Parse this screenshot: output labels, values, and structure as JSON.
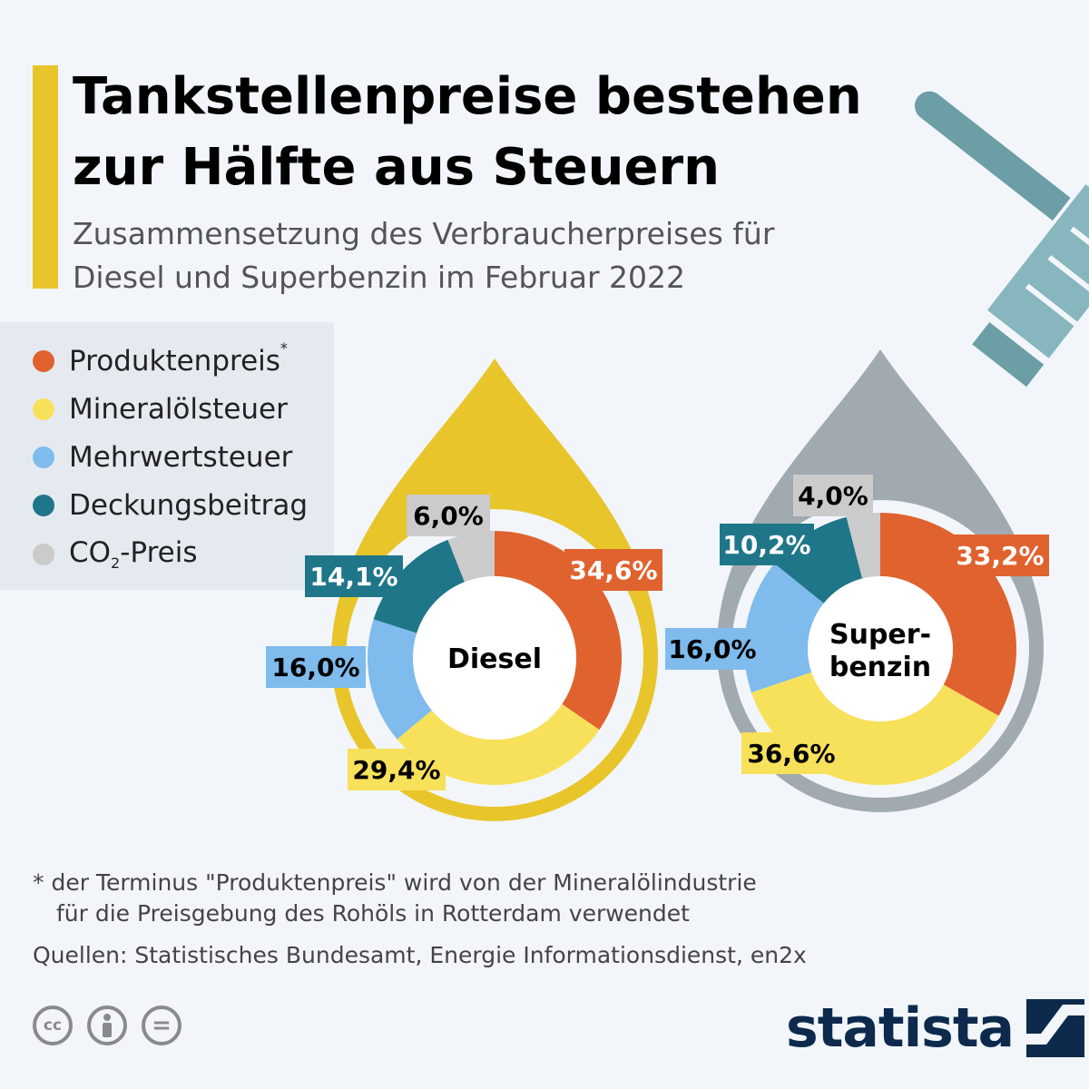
{
  "header": {
    "title_line1": "Tankstellenpreise bestehen",
    "title_line2": "zur Hälfte aus Steuern",
    "subtitle_line1": "Zusammensetzung des Verbraucherpreises für",
    "subtitle_line2": "Diesel und Superbenzin im Februar 2022"
  },
  "legend": {
    "produktenpreis": "Produktenpreis",
    "produktenpreis_mark": "*",
    "mineraloelsteuer": "Mineralölsteuer",
    "mehrwertsteuer": "Mehrwertsteuer",
    "deckungsbeitrag": "Deckungsbeitrag",
    "co2_prefix": "CO",
    "co2_sub": "2",
    "co2_suffix": "-Preis"
  },
  "colors": {
    "produktenpreis": "#e0622e",
    "mineraloelsteuer": "#f8e15a",
    "mehrwertsteuer": "#7fbbed",
    "deckungsbeitrag": "#1f7689",
    "co2": "#cbcbcb",
    "diesel_drop": "#e8c52b",
    "super_drop": "#a1a9b1"
  },
  "chart_data": [
    {
      "type": "pie",
      "name": "Diesel",
      "center_label": "Diesel",
      "slices": [
        {
          "category": "Produktenpreis",
          "value": 34.6,
          "label": "34,6%"
        },
        {
          "category": "Mineralölsteuer",
          "value": 29.4,
          "label": "29,4%"
        },
        {
          "category": "Mehrwertsteuer",
          "value": 16.0,
          "label": "16,0%"
        },
        {
          "category": "Deckungsbeitrag",
          "value": 14.1,
          "label": "14,1%"
        },
        {
          "category": "CO2-Preis",
          "value": 6.0,
          "label": "6,0%"
        }
      ]
    },
    {
      "type": "pie",
      "name": "Superbenzin",
      "center_label_line1": "Super-",
      "center_label_line2": "benzin",
      "slices": [
        {
          "category": "Produktenpreis",
          "value": 33.2,
          "label": "33,2%"
        },
        {
          "category": "Mineralölsteuer",
          "value": 36.6,
          "label": "36,6%"
        },
        {
          "category": "Mehrwertsteuer",
          "value": 16.0,
          "label": "16,0%"
        },
        {
          "category": "Deckungsbeitrag",
          "value": 10.2,
          "label": "10,2%"
        },
        {
          "category": "CO2-Preis",
          "value": 4.0,
          "label": "4,0%"
        }
      ]
    }
  ],
  "footer": {
    "footnote_line1": "* der Terminus \"Produktenpreis\" wird von der Mineralölindustrie",
    "footnote_line2": "für die Preisgebung des Rohöls in Rotterdam verwendet",
    "source": "Quellen: Statistisches Bundesamt, Energie Informationsdienst, en2x",
    "brand": "statista",
    "cc_label": "cc",
    "equals_label": "="
  }
}
